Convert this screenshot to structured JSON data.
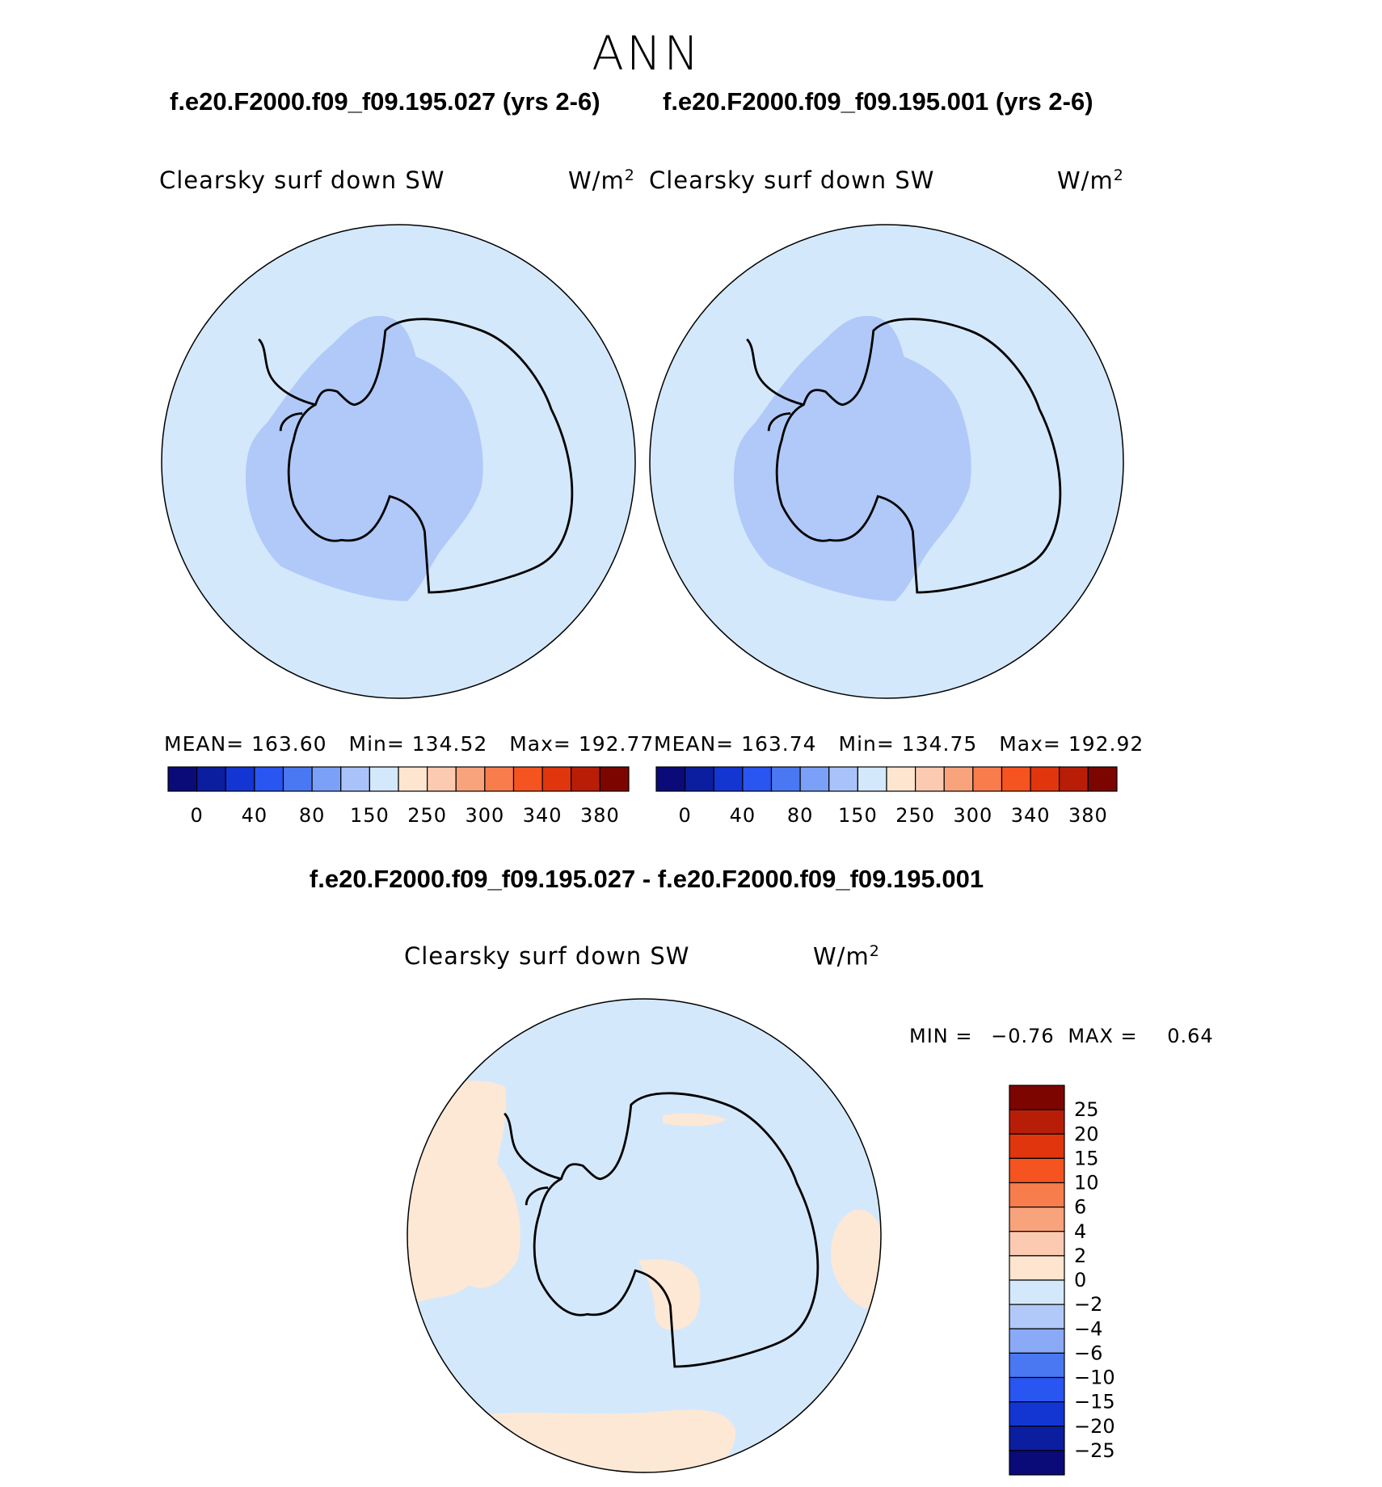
{
  "page": {
    "title": "ANN",
    "case_left": "f.e20.F2000.f09_f09.195.027 (yrs 2-6)",
    "case_right": "f.e20.F2000.f09_f09.195.001 (yrs 2-6)",
    "diff_title": "f.e20.F2000.f09_f09.195.027 - f.e20.F2000.f09_f09.195.001"
  },
  "panels": [
    {
      "variable": "Clearsky surf down SW",
      "units": "W/m",
      "units_sup": "2",
      "mean_label": "MEAN=",
      "mean": "163.60",
      "min_label": "Min=",
      "min": "134.52",
      "max_label": "Max=",
      "max": "192.77"
    },
    {
      "variable": "Clearsky surf down SW",
      "units": "W/m",
      "units_sup": "2",
      "mean_label": "MEAN=",
      "mean": "163.74",
      "min_label": "Min=",
      "min": "134.75",
      "max_label": "Max=",
      "max": "192.92"
    }
  ],
  "diff_panel": {
    "variable": "Clearsky surf down SW",
    "units": "W/m",
    "units_sup": "2",
    "min_label": "MIN =",
    "min": "−0.76",
    "max_label": "MAX =",
    "max": "0.64"
  },
  "chart_data": [
    {
      "type": "heatmap",
      "projection": "south-polar-stereographic",
      "colorbar": {
        "orientation": "horizontal",
        "colors": [
          "#0a0a78",
          "#0b1ea0",
          "#1336d2",
          "#2955f0",
          "#4a78f3",
          "#7aa0f7",
          "#a9c3fa",
          "#d4e8fb",
          "#fde5d0",
          "#fbcab0",
          "#f9a37c",
          "#f77d4c",
          "#f5531f",
          "#e0350d",
          "#b81e07",
          "#7d0500"
        ],
        "tick_labels": [
          "0",
          "40",
          "80",
          "150",
          "250",
          "300",
          "340",
          "380"
        ]
      },
      "field": {
        "ocean_fill": "#d4e8fb",
        "west_antarctica_fill": "#b0c9f9"
      }
    },
    {
      "type": "heatmap",
      "projection": "south-polar-stereographic",
      "colorbar": {
        "orientation": "horizontal",
        "colors": [
          "#0a0a78",
          "#0b1ea0",
          "#1336d2",
          "#2955f0",
          "#4a78f3",
          "#7aa0f7",
          "#a9c3fa",
          "#d4e8fb",
          "#fde5d0",
          "#fbcab0",
          "#f9a37c",
          "#f77d4c",
          "#f5531f",
          "#e0350d",
          "#b81e07",
          "#7d0500"
        ],
        "tick_labels": [
          "0",
          "40",
          "80",
          "150",
          "250",
          "300",
          "340",
          "380"
        ]
      },
      "field": {
        "ocean_fill": "#d4e8fb",
        "west_antarctica_fill": "#b0c9f9"
      }
    },
    {
      "type": "heatmap",
      "projection": "south-polar-stereographic",
      "colorbar": {
        "orientation": "vertical",
        "colors_top_to_bottom": [
          "#7d0500",
          "#b81e07",
          "#e0350d",
          "#f5531f",
          "#f77d4c",
          "#f9a37c",
          "#fbcab0",
          "#fde5d0",
          "#d4e8fb",
          "#b0c9f9",
          "#8aaaf8",
          "#4a78f3",
          "#2955f0",
          "#1336d2",
          "#0b1ea0",
          "#0a0a78"
        ],
        "tick_labels": [
          "25",
          "20",
          "15",
          "10",
          "6",
          "4",
          "2",
          "0",
          "−2",
          "−4",
          "−6",
          "−10",
          "−15",
          "−20",
          "−25"
        ]
      },
      "field": {
        "negative_fill": "#d4e8fb",
        "positive_fill": "#fde8d6"
      }
    }
  ]
}
